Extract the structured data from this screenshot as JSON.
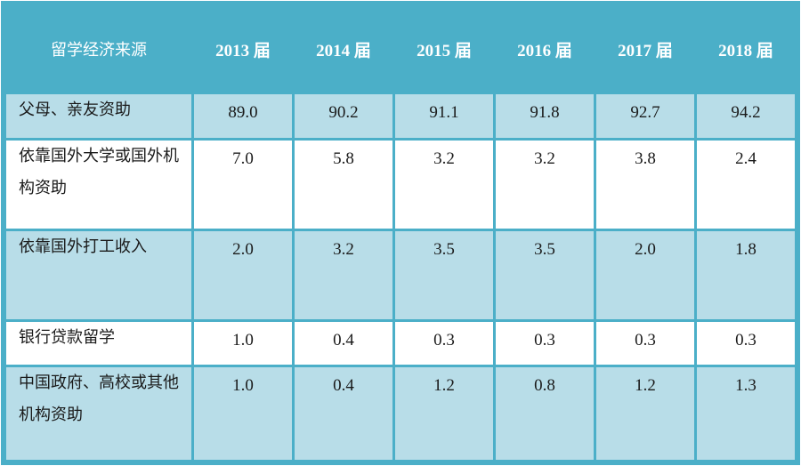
{
  "chart_data": {
    "type": "table",
    "columns": [
      "留学经济来源",
      "2013 届",
      "2014 届",
      "2015 届",
      "2016 届",
      "2017 届",
      "2018 届"
    ],
    "rows": [
      {
        "label": "父母、亲友资助",
        "values": [
          "89.0",
          "90.2",
          "91.1",
          "91.8",
          "92.7",
          "94.2"
        ]
      },
      {
        "label": "依靠国外大学或国外机构资助",
        "values": [
          "7.0",
          "5.8",
          "3.2",
          "3.2",
          "3.8",
          "2.4"
        ]
      },
      {
        "label": "依靠国外打工收入",
        "values": [
          "2.0",
          "3.2",
          "3.5",
          "3.5",
          "2.0",
          "1.8"
        ]
      },
      {
        "label": "银行贷款留学",
        "values": [
          "1.0",
          "0.4",
          "0.3",
          "0.3",
          "0.3",
          "0.3"
        ]
      },
      {
        "label": "中国政府、高校或其他机构资助",
        "values": [
          "1.0",
          "0.4",
          "1.2",
          "0.8",
          "1.2",
          "1.3"
        ]
      }
    ]
  },
  "colors": {
    "header_bg": "#4bafc8",
    "header_text": "#ffffff",
    "shaded_row": "#b8dde8",
    "plain_row": "#ffffff",
    "border": "#4bafc8"
  }
}
